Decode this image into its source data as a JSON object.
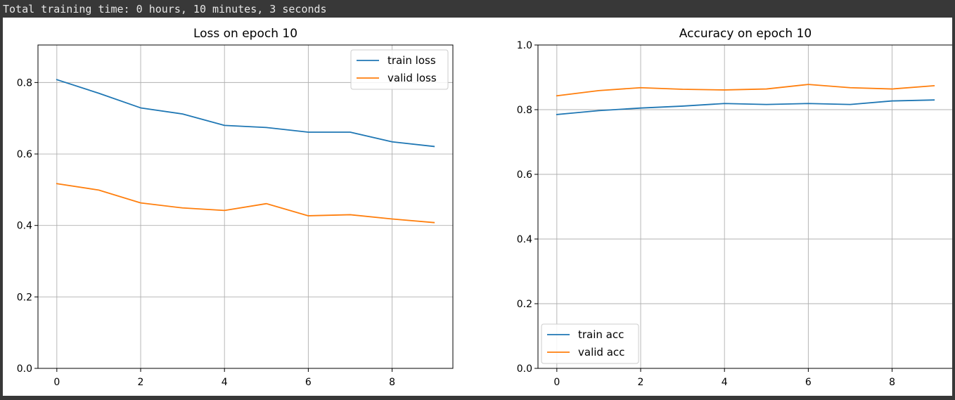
{
  "output": {
    "status_text": "Total training time: 0 hours, 10 minutes, 3 seconds"
  },
  "chart_data": [
    {
      "type": "line",
      "title": "Loss on epoch 10",
      "xlabel": "",
      "ylabel": "",
      "xlim": [
        -0.45,
        9.45
      ],
      "ylim": [
        0,
        0.905
      ],
      "xticks": [
        0,
        2,
        4,
        6,
        8
      ],
      "xtick_labels": [
        "0",
        "2",
        "4",
        "6",
        "8"
      ],
      "yticks": [
        0.0,
        0.2,
        0.4,
        0.6,
        0.8
      ],
      "ytick_labels": [
        "0.0",
        "0.2",
        "0.4",
        "0.6",
        "0.8"
      ],
      "grid": true,
      "legend_position": "upper right",
      "x": [
        0,
        1,
        2,
        3,
        4,
        5,
        6,
        7,
        8,
        9
      ],
      "series": [
        {
          "name": "train loss",
          "color": "#1f77b4",
          "values": [
            0.808,
            0.77,
            0.729,
            0.712,
            0.68,
            0.674,
            0.661,
            0.661,
            0.634,
            0.621
          ]
        },
        {
          "name": "valid loss",
          "color": "#ff7f0e",
          "values": [
            0.517,
            0.499,
            0.463,
            0.449,
            0.442,
            0.461,
            0.427,
            0.43,
            0.418,
            0.408
          ]
        }
      ]
    },
    {
      "type": "line",
      "title": "Accuracy on epoch 10",
      "xlabel": "",
      "ylabel": "",
      "xlim": [
        -0.45,
        9.45
      ],
      "ylim": [
        0,
        1.0
      ],
      "xticks": [
        0,
        2,
        4,
        6,
        8
      ],
      "xtick_labels": [
        "0",
        "2",
        "4",
        "6",
        "8"
      ],
      "yticks": [
        0.0,
        0.2,
        0.4,
        0.6,
        0.8,
        1.0
      ],
      "ytick_labels": [
        "0.0",
        "0.2",
        "0.4",
        "0.6",
        "0.8",
        "1.0"
      ],
      "grid": true,
      "legend_position": "lower left",
      "x": [
        0,
        1,
        2,
        3,
        4,
        5,
        6,
        7,
        8,
        9
      ],
      "series": [
        {
          "name": "train acc",
          "color": "#1f77b4",
          "values": [
            0.785,
            0.797,
            0.805,
            0.811,
            0.819,
            0.816,
            0.819,
            0.816,
            0.827,
            0.83
          ]
        },
        {
          "name": "valid acc",
          "color": "#ff7f0e",
          "values": [
            0.843,
            0.859,
            0.868,
            0.863,
            0.861,
            0.864,
            0.878,
            0.868,
            0.864,
            0.874
          ]
        }
      ]
    }
  ]
}
